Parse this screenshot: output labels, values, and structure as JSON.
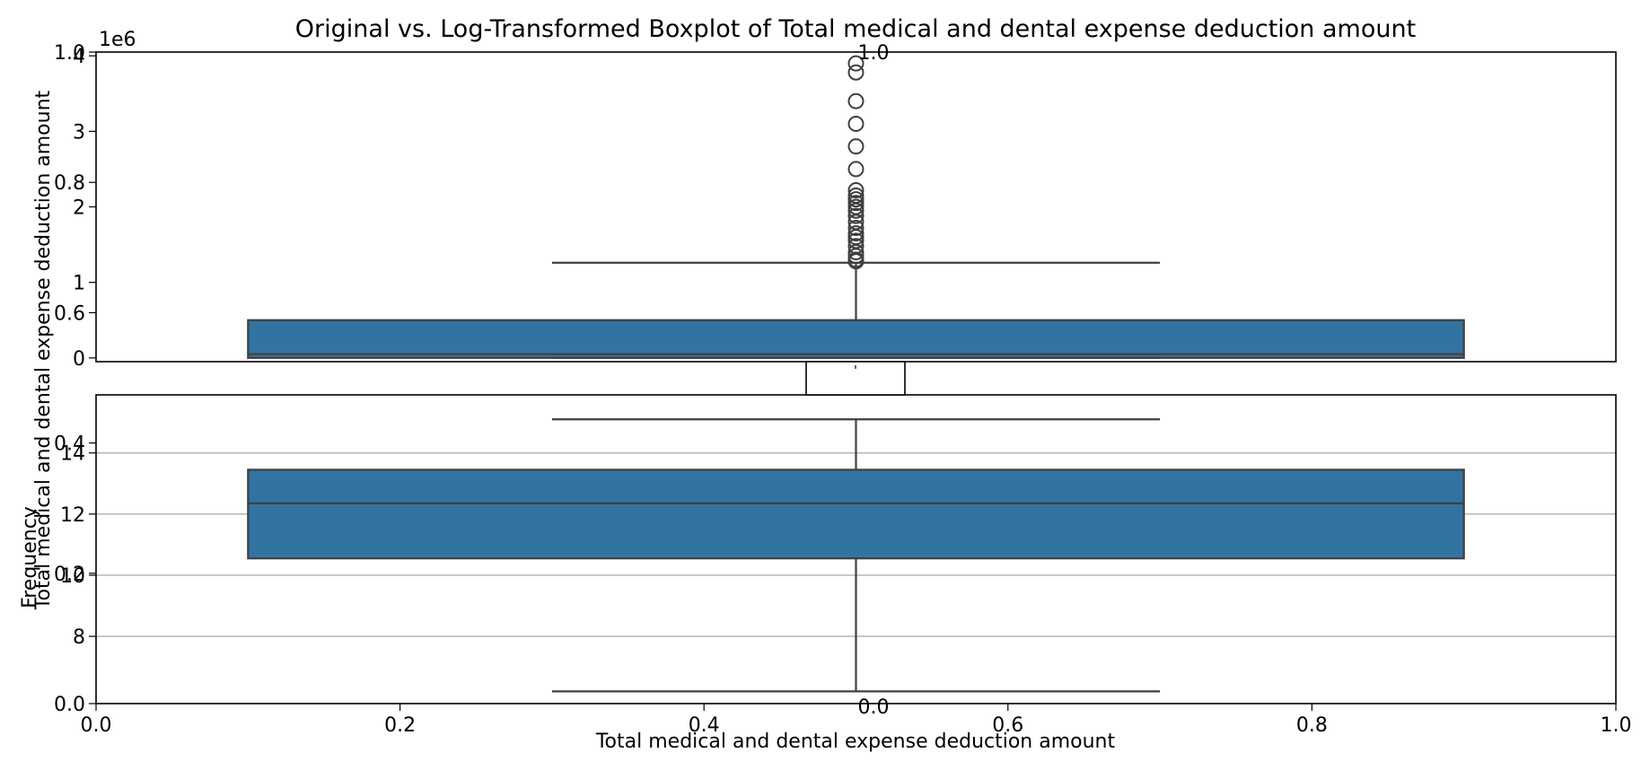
{
  "chart_data": {
    "title": "Original vs. Log-Transformed Boxplot of Total medical and dental expense deduction amount",
    "outer_axes": {
      "ylabel": "Frequency",
      "xlabel": "",
      "xlim": [
        0,
        1
      ],
      "ylim": [
        0,
        1
      ],
      "x_ticks": [
        "0.0",
        "0.2",
        "0.4",
        "0.6",
        "0.8",
        "1.0"
      ],
      "y_ticks": [
        "0.0",
        "0.2",
        "0.4",
        "0.6",
        "0.8",
        "1.0"
      ]
    },
    "charts": [
      {
        "type": "box",
        "orientation": "vertical",
        "panel": "top",
        "ylabel": "Total medical and dental expense deduction amount",
        "y_offset_label": "1e6",
        "ylim": [
          -0.05,
          4.05
        ],
        "y_ticks": [
          "0",
          "1",
          "2",
          "3",
          "4"
        ],
        "x_ticks": [
          "0.0",
          "0.2",
          "0.4",
          "0.6",
          "0.8",
          "1.0"
        ],
        "grid": false,
        "color": "#3274a1",
        "box": {
          "whisker_low": 0.0,
          "q1": 0.0,
          "median": 0.05,
          "q3": 0.5,
          "whisker_high": 1.26
        },
        "outliers": [
          1.28,
          1.3,
          1.35,
          1.4,
          1.48,
          1.55,
          1.6,
          1.65,
          1.72,
          1.8,
          1.88,
          1.95,
          2.0,
          2.05,
          2.1,
          2.15,
          2.22,
          2.5,
          2.8,
          3.1,
          3.4,
          3.78,
          3.9
        ]
      },
      {
        "type": "box",
        "orientation": "vertical",
        "panel": "bottom",
        "xlabel": "Total medical and dental expense deduction amount",
        "ylabel": "",
        "ylim": [
          5.8,
          15.9
        ],
        "y_ticks": [
          "8",
          "10",
          "12",
          "14"
        ],
        "x_ticks": [
          "0.0",
          "0.2",
          "0.4",
          "0.6",
          "0.8",
          "1.0"
        ],
        "grid": true,
        "color": "#3274a1",
        "box": {
          "whisker_low": 6.2,
          "q1": 10.55,
          "median": 12.35,
          "q3": 13.45,
          "whisker_high": 15.1
        },
        "outliers": []
      }
    ]
  }
}
